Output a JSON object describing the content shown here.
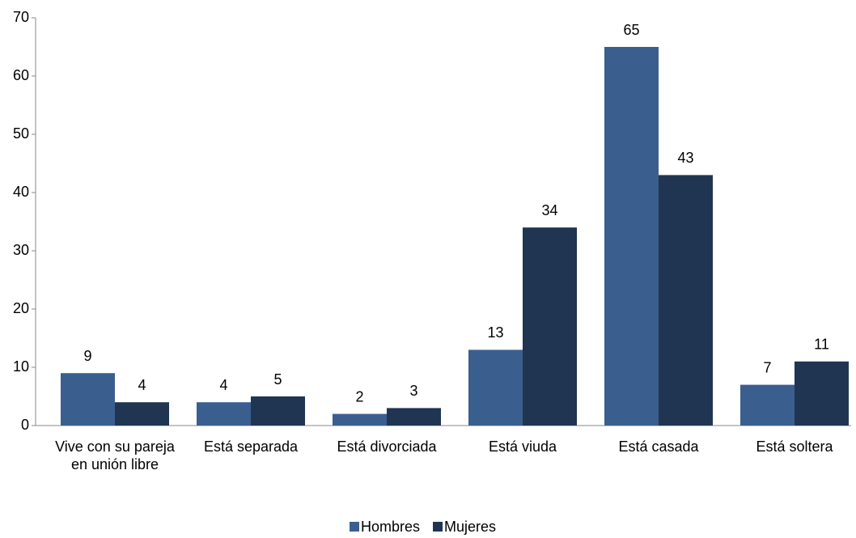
{
  "chart_data": {
    "type": "bar",
    "categories": [
      "Vive con su pareja en unión libre",
      "Está separada",
      "Está divorciada",
      "Está viuda",
      "Está casada",
      "Está soltera"
    ],
    "series": [
      {
        "name": "Hombres",
        "color": "#3a5f8f",
        "values": [
          9,
          4,
          2,
          13,
          65,
          7
        ]
      },
      {
        "name": "Mujeres",
        "color": "#1f3552",
        "values": [
          4,
          5,
          3,
          34,
          43,
          11
        ]
      }
    ],
    "ylim": [
      0,
      70
    ],
    "yticks": [
      0,
      10,
      20,
      30,
      40,
      50,
      60,
      70
    ],
    "grid": false,
    "legend": "bottom"
  }
}
